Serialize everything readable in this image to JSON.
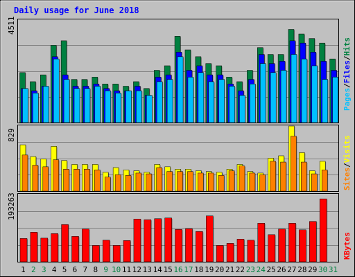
{
  "title": "Daily usage for June 2018",
  "colors": {
    "background": "#c0c0c0",
    "title_text": "#0000ff",
    "grid": "#808080",
    "hits": "#008040",
    "files": "#0000ff",
    "pages": "#00c0ff",
    "visits": "#ffff00",
    "sites": "#ff8000",
    "kbytes": "#ff0000",
    "day_black": "#000000",
    "day_green": "#008040"
  },
  "top_labels": {
    "max": "4511",
    "pages": "Pages",
    "files": "Files",
    "hits": "Hits",
    "sep": "/"
  },
  "mid_labels": {
    "max": "829",
    "sites": "Sites",
    "visits": "Visits",
    "sep": "/"
  },
  "bot_labels": {
    "max": "193263",
    "kbytes": "KBytes"
  },
  "chart_data": [
    {
      "type": "bar",
      "title": "Daily usage for June 2018",
      "categories": [
        "1",
        "2",
        "3",
        "4",
        "5",
        "6",
        "7",
        "8",
        "9",
        "10",
        "11",
        "12",
        "13",
        "14",
        "15",
        "16",
        "17",
        "18",
        "19",
        "20",
        "21",
        "22",
        "23",
        "24",
        "25",
        "26",
        "27",
        "28",
        "29",
        "30",
        "31"
      ],
      "ylim": [
        0,
        4511
      ],
      "series": [
        {
          "name": "Hits",
          "values": [
            2200,
            1800,
            2100,
            3400,
            3600,
            1900,
            1900,
            2000,
            1700,
            1700,
            1600,
            1800,
            1500,
            2300,
            2500,
            3800,
            3200,
            2900,
            2600,
            2500,
            2000,
            1800,
            2300,
            3300,
            3000,
            3000,
            4100,
            3900,
            3700,
            3500,
            2800
          ]
        },
        {
          "name": "Files",
          "values": [
            1500,
            1400,
            1600,
            2900,
            2100,
            1600,
            1600,
            1700,
            1500,
            1400,
            1400,
            1600,
            1200,
            2000,
            2100,
            3100,
            2300,
            2500,
            2100,
            2100,
            1700,
            1400,
            1900,
            3000,
            2600,
            2700,
            3600,
            3500,
            3100,
            2700,
            2300
          ]
        },
        {
          "name": "Pages",
          "values": [
            1500,
            1300,
            1600,
            2800,
            1900,
            1500,
            1500,
            1600,
            1400,
            1300,
            1400,
            1400,
            1200,
            1800,
            1900,
            2900,
            2000,
            2200,
            1800,
            1900,
            1600,
            1200,
            1700,
            2600,
            2200,
            2300,
            3000,
            2800,
            2500,
            1900,
            2000
          ]
        }
      ]
    },
    {
      "type": "bar",
      "categories": [
        "1",
        "2",
        "3",
        "4",
        "5",
        "6",
        "7",
        "8",
        "9",
        "10",
        "11",
        "12",
        "13",
        "14",
        "15",
        "16",
        "17",
        "18",
        "19",
        "20",
        "21",
        "22",
        "23",
        "24",
        "25",
        "26",
        "27",
        "28",
        "29",
        "30",
        "31"
      ],
      "ylim": [
        0,
        829
      ],
      "series": [
        {
          "name": "Visits",
          "values": [
            590,
            440,
            410,
            570,
            390,
            340,
            340,
            340,
            240,
            300,
            270,
            260,
            240,
            340,
            310,
            280,
            280,
            260,
            250,
            240,
            280,
            340,
            250,
            230,
            420,
            450,
            829,
            490,
            260,
            380,
            0
          ]
        },
        {
          "name": "Sites",
          "values": [
            460,
            330,
            310,
            400,
            280,
            280,
            280,
            270,
            180,
            210,
            200,
            230,
            220,
            300,
            250,
            250,
            250,
            230,
            230,
            200,
            260,
            320,
            230,
            210,
            380,
            370,
            700,
            370,
            220,
            270,
            0
          ]
        }
      ]
    },
    {
      "type": "bar",
      "categories": [
        "1",
        "2",
        "3",
        "4",
        "5",
        "6",
        "7",
        "8",
        "9",
        "10",
        "11",
        "12",
        "13",
        "14",
        "15",
        "16",
        "17",
        "18",
        "19",
        "20",
        "21",
        "22",
        "23",
        "24",
        "25",
        "26",
        "27",
        "28",
        "29",
        "30",
        "31"
      ],
      "ylim": [
        0,
        193263
      ],
      "series": [
        {
          "name": "KBytes",
          "values": [
            67000,
            85000,
            68000,
            81000,
            107000,
            73000,
            94000,
            47000,
            62000,
            47000,
            61000,
            123000,
            121000,
            124000,
            126000,
            93000,
            95000,
            87000,
            132000,
            47000,
            53000,
            65000,
            62000,
            111000,
            78000,
            94000,
            111000,
            92000,
            116000,
            181000,
            0
          ]
        }
      ]
    }
  ],
  "day_labels": [
    "1",
    "2",
    "3",
    "4",
    "5",
    "6",
    "7",
    "8",
    "9",
    "10",
    "11",
    "12",
    "13",
    "14",
    "15",
    "16",
    "17",
    "18",
    "19",
    "20",
    "21",
    "22",
    "23",
    "24",
    "25",
    "26",
    "27",
    "28",
    "29",
    "30",
    "31"
  ],
  "weekend_days": [
    "2",
    "3",
    "9",
    "10",
    "16",
    "17",
    "23",
    "24",
    "30",
    "31"
  ]
}
